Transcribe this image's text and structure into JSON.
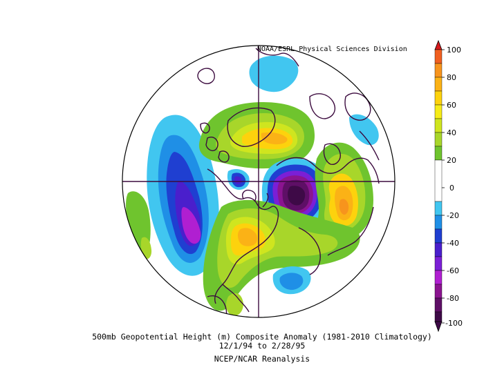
{
  "map": {
    "credit": "NOAA/ESRL Physical Sciences Division",
    "title_line1": "500mb Geopotential Height (m) Composite Anomaly (1981-2010 Climatology)",
    "title_line2": "12/1/94  to 2/28/95",
    "title_line3": "NCEP/NCAR Reanalysis",
    "projection": "north polar stereographic",
    "colorbar": {
      "labels": [
        "100",
        "80",
        "60",
        "40",
        "20",
        "0",
        "-20",
        "-40",
        "-60",
        "-80",
        "-100"
      ],
      "colors": {
        "100": "#d7191c",
        "90": "#f05f20",
        "80": "#f7941d",
        "70": "#fbb216",
        "60": "#fdd20d",
        "50": "#f6ec18",
        "40": "#cfe51f",
        "30": "#a8d62a",
        "20": "#6fc42e",
        "0": "#ffffff",
        "-20": "#41c6f0",
        "-30": "#1f8fe6",
        "-40": "#1f3fd1",
        "-50": "#4a1fcc",
        "-60": "#7b1fd6",
        "-70": "#b01fd1",
        "-80": "#8b1490",
        "-90": "#5e0f66",
        "-100": "#3e0a47"
      }
    }
  }
}
